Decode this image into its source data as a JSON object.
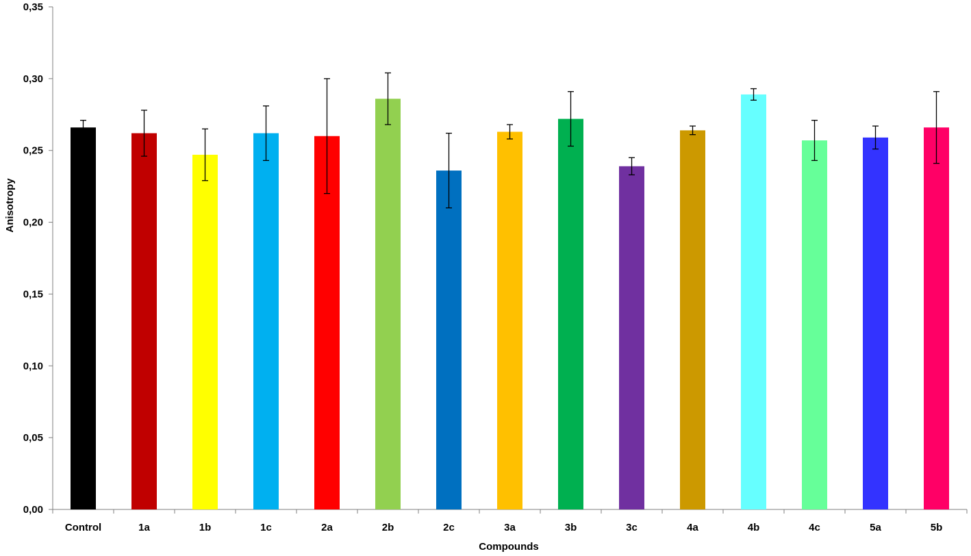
{
  "chart_data": {
    "type": "bar",
    "title": "",
    "xlabel": "Compounds",
    "ylabel": "Anisotropy",
    "ylim": [
      0,
      0.35
    ],
    "y_ticks": [
      "0,00",
      "0,05",
      "0,10",
      "0,15",
      "0,20",
      "0,25",
      "0,30",
      "0,35"
    ],
    "grid": false,
    "legend": "none",
    "categories": [
      "Control",
      "1a",
      "1b",
      "1c",
      "2a",
      "2b",
      "2c",
      "3a",
      "3b",
      "3c",
      "4a",
      "4b",
      "4c",
      "5a",
      "5b"
    ],
    "values": [
      0.266,
      0.262,
      0.247,
      0.262,
      0.26,
      0.286,
      0.236,
      0.263,
      0.272,
      0.239,
      0.264,
      0.289,
      0.257,
      0.259,
      0.266
    ],
    "error": [
      0.005,
      0.016,
      0.018,
      0.019,
      0.04,
      0.018,
      0.026,
      0.005,
      0.019,
      0.006,
      0.003,
      0.004,
      0.014,
      0.008,
      0.025
    ],
    "colors": [
      "#000000",
      "#C00000",
      "#FFFF00",
      "#00B0F0",
      "#FF0000",
      "#92D050",
      "#0070C0",
      "#FFC000",
      "#00B050",
      "#7030A0",
      "#CC9900",
      "#66FFFF",
      "#66FF99",
      "#3333FF",
      "#FF0066"
    ]
  }
}
